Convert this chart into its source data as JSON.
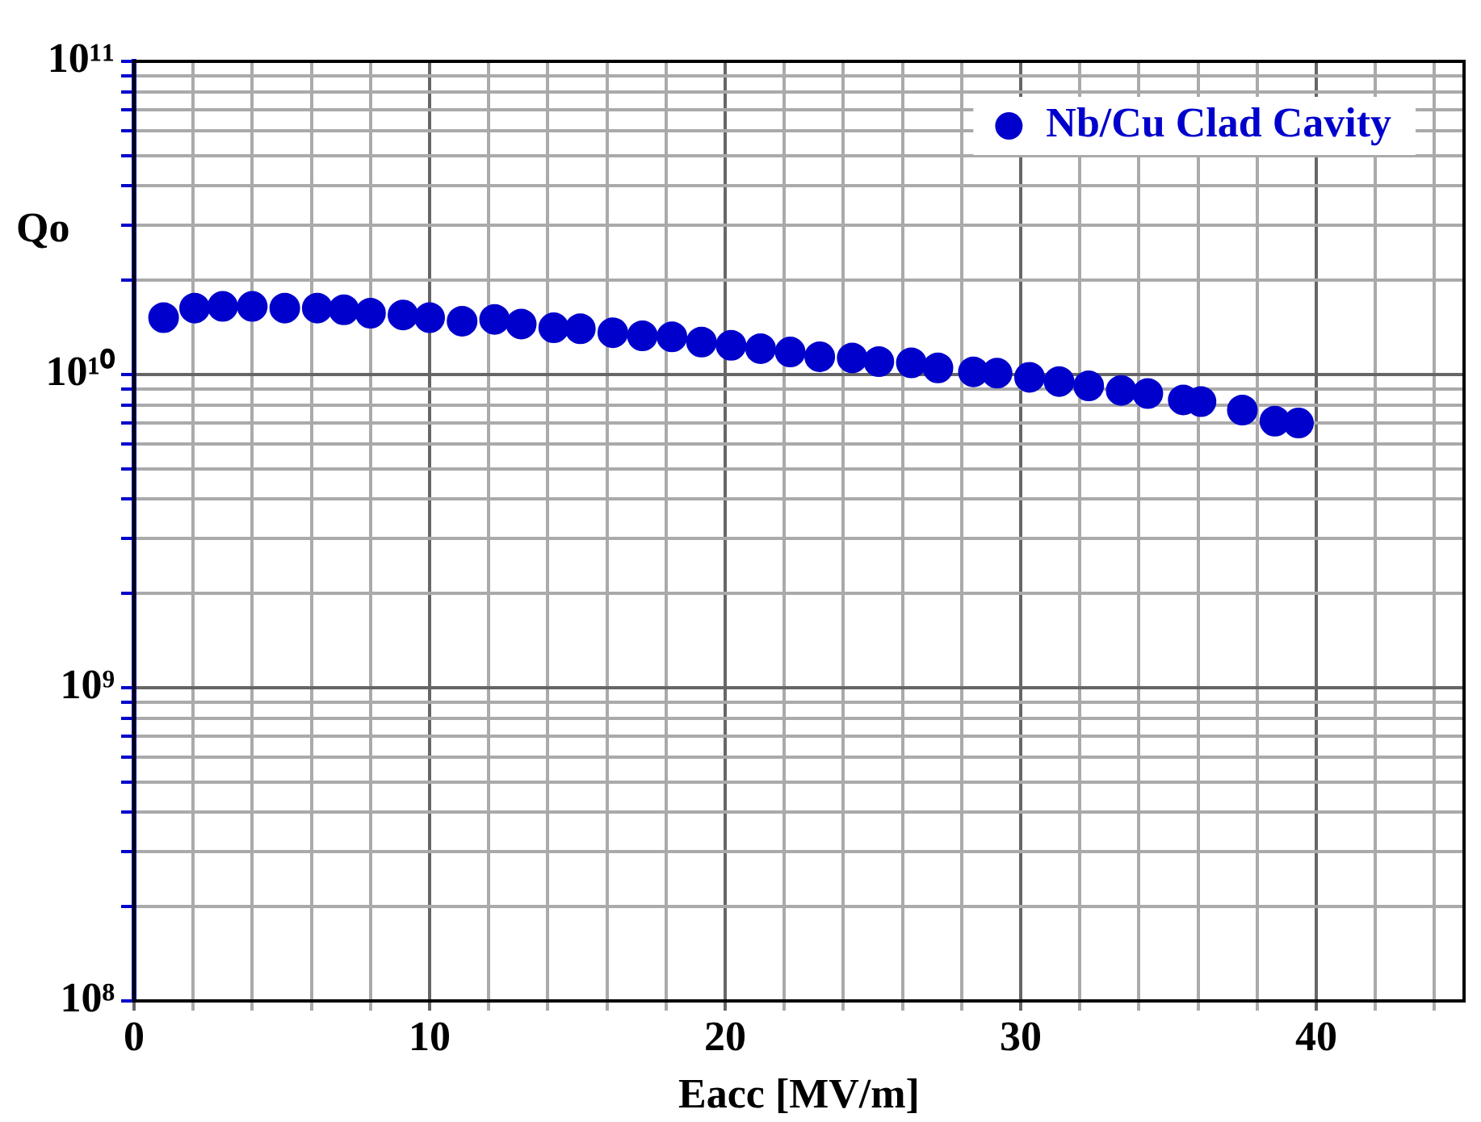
{
  "chart_data": {
    "type": "scatter",
    "xlabel": "Eacc [MV/m]",
    "ylabel": "Qo",
    "log": "y",
    "grid": true,
    "legend": "top right",
    "marker": "circle",
    "xlim": [
      0,
      45
    ],
    "ylim": [
      100000000,
      100000000000
    ],
    "xticks": [
      0,
      {
        "value": 2,
        "label": null
      },
      {
        "value": 4,
        "label": null
      },
      {
        "value": 6,
        "label": null
      },
      {
        "value": 8,
        "label": null
      },
      10,
      {
        "value": 12,
        "label": null
      },
      {
        "value": 14,
        "label": null
      },
      {
        "value": 16,
        "label": null
      },
      {
        "value": 18,
        "label": null
      },
      20,
      {
        "value": 22,
        "label": null
      },
      {
        "value": 24,
        "label": null
      },
      {
        "value": 26,
        "label": null
      },
      {
        "value": 28,
        "label": null
      },
      30,
      {
        "value": 32,
        "label": null
      },
      {
        "value": 34,
        "label": null
      },
      {
        "value": 36,
        "label": null
      },
      {
        "value": 38,
        "label": null
      },
      40,
      {
        "value": 42,
        "label": null
      },
      {
        "value": 44,
        "label": null
      }
    ],
    "yticks": [
      {
        "value": 100000000,
        "label": "10⁸"
      },
      {
        "value": 200000000,
        "label": null
      },
      {
        "value": 300000000,
        "label": null
      },
      {
        "value": 400000000,
        "label": null
      },
      {
        "value": 500000000,
        "label": null
      },
      {
        "value": 600000000,
        "label": null
      },
      {
        "value": 700000000,
        "label": null
      },
      {
        "value": 800000000,
        "label": null
      },
      {
        "value": 900000000,
        "label": null
      },
      {
        "value": 1000000000,
        "label": "10⁹"
      },
      {
        "value": 2000000000,
        "label": null
      },
      {
        "value": 3000000000,
        "label": null
      },
      {
        "value": 4000000000,
        "label": null
      },
      {
        "value": 5000000000,
        "label": null
      },
      {
        "value": 6000000000,
        "label": null
      },
      {
        "value": 7000000000,
        "label": null
      },
      {
        "value": 8000000000,
        "label": null
      },
      {
        "value": 9000000000,
        "label": null
      },
      {
        "value": 10000000000,
        "label": "10¹⁰"
      },
      {
        "value": 20000000000,
        "label": null
      },
      {
        "value": 30000000000,
        "label": null
      },
      {
        "value": 40000000000,
        "label": null
      },
      {
        "value": 50000000000,
        "label": null
      },
      {
        "value": 60000000000,
        "label": null
      },
      {
        "value": 70000000000,
        "label": null
      },
      {
        "value": 80000000000,
        "label": null
      },
      {
        "value": 90000000000,
        "label": null
      },
      {
        "value": 100000000000,
        "label": "10¹¹"
      }
    ],
    "series": [
      {
        "name": "Nb/Cu Clad Cavity",
        "color": "#0000cc",
        "x": [
          1.0,
          2.05,
          3.0,
          4.0,
          5.1,
          6.2,
          7.1,
          8.0,
          9.1,
          10.0,
          11.1,
          12.2,
          13.1,
          14.2,
          15.1,
          16.2,
          17.2,
          18.2,
          19.2,
          20.2,
          21.2,
          22.2,
          23.2,
          24.3,
          25.2,
          26.3,
          27.2,
          28.4,
          29.2,
          30.3,
          31.3,
          32.3,
          33.4,
          34.3,
          35.5,
          36.1,
          37.5,
          38.6,
          39.4
        ],
        "values": [
          15200000000,
          16300000000,
          16500000000,
          16500000000,
          16300000000,
          16300000000,
          16100000000,
          15700000000,
          15500000000,
          15200000000,
          14800000000,
          15000000000,
          14500000000,
          14100000000,
          14000000000,
          13600000000,
          13300000000,
          13200000000,
          12700000000,
          12400000000,
          12100000000,
          11800000000,
          11400000000,
          11300000000,
          11000000000,
          10900000000,
          10500000000,
          10200000000,
          10100000000,
          9800000000,
          9500000000,
          9200000000,
          8900000000,
          8700000000,
          8300000000,
          8200000000,
          7700000000,
          7100000000,
          7000000000
        ]
      }
    ]
  }
}
